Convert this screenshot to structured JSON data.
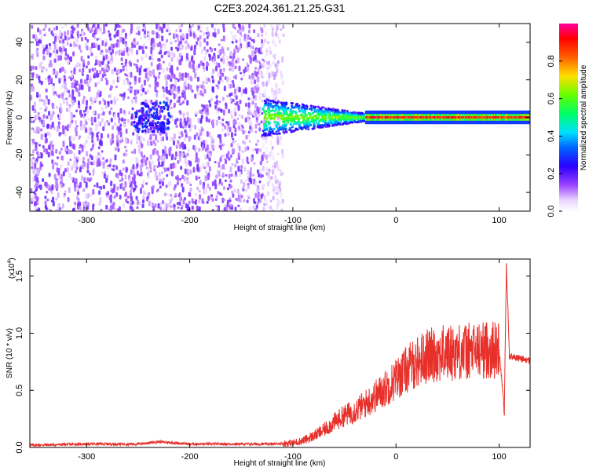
{
  "title": "C2E3.2024.361.21.25.G31",
  "colors": {
    "snr_line": "#e8302a",
    "axis": "#000000",
    "background": "#ffffff"
  },
  "chart_data": [
    {
      "type": "heatmap",
      "title": "C2E3.2024.361.21.25.G31",
      "xlabel": "Height of straight line (km)",
      "ylabel": "Frequency (Hz)",
      "xlim": [
        -355,
        130
      ],
      "ylim": [
        -50,
        50
      ],
      "x_ticks": [
        -300,
        -200,
        -100,
        0,
        100
      ],
      "x_tick_labels": [
        "-300",
        "-200",
        "-100",
        "0",
        "100"
      ],
      "y_ticks": [
        -40,
        -20,
        0,
        20,
        40
      ],
      "y_tick_labels": [
        "-40",
        "-20",
        "0",
        "20",
        "40"
      ],
      "colorbar": {
        "label": "Normalized spectral amplitude",
        "range": [
          0,
          1
        ],
        "ticks": [
          0.0,
          0.2,
          0.4,
          0.6,
          0.8
        ],
        "tick_labels": [
          "0.0",
          "0.2",
          "0.4",
          "0.6",
          "0.8"
        ],
        "colormap": "rainbow (white-violet-blue-cyan-green-yellow-red-magenta)"
      },
      "features": [
        {
          "region": "noise",
          "x_range": [
            -355,
            -130
          ],
          "freq_range": [
            -50,
            50
          ],
          "amplitude": 0.15
        },
        {
          "region": "weak cluster",
          "x_range": [
            -255,
            -220
          ],
          "freq_center": 0,
          "freq_halfwidth": 8,
          "amplitude": 0.25
        },
        {
          "region": "transition",
          "x_range": [
            -130,
            -30
          ],
          "freq_center": 0,
          "freq_halfwidth_start": 10,
          "freq_halfwidth_end": 2,
          "amplitude": 0.45
        },
        {
          "region": "signal",
          "x_range": [
            -30,
            130
          ],
          "freq_center": 0,
          "freq_halfwidth": 1.5,
          "amplitude": 0.95
        }
      ]
    },
    {
      "type": "line",
      "xlabel": "Height of straight line (km)",
      "ylabel": "SNR (10 * v/v)",
      "y_multiplier": "(x10",
      "y_multiplier_exponent": "4",
      "y_multiplier_close": ")",
      "xlim": [
        -355,
        130
      ],
      "ylim": [
        0,
        1.65
      ],
      "x_ticks": [
        -300,
        -200,
        -100,
        0,
        100
      ],
      "x_tick_labels": [
        "-300",
        "-200",
        "-100",
        "0",
        "100"
      ],
      "y_ticks": [
        0.0,
        0.5,
        1.0,
        1.5
      ],
      "y_tick_labels": [
        "0.0",
        "0.5",
        "1.0",
        "1.5"
      ],
      "series": [
        {
          "x": [
            -355,
            -300,
            -250,
            -230,
            -200,
            -150,
            -120,
            -100,
            -90,
            -80,
            -70,
            -60,
            -50,
            -40,
            -30,
            -20,
            -10,
            0,
            10,
            20,
            30,
            40,
            50,
            60,
            70,
            80,
            90,
            100,
            103,
            105,
            107,
            110,
            120,
            130
          ],
          "values": [
            0.02,
            0.03,
            0.03,
            0.05,
            0.03,
            0.03,
            0.03,
            0.04,
            0.06,
            0.1,
            0.15,
            0.22,
            0.28,
            0.32,
            0.38,
            0.45,
            0.52,
            0.6,
            0.68,
            0.75,
            0.8,
            0.82,
            0.83,
            0.84,
            0.84,
            0.85,
            0.86,
            0.85,
            0.55,
            0.3,
            1.6,
            0.8,
            0.78,
            0.76
          ]
        }
      ]
    }
  ]
}
